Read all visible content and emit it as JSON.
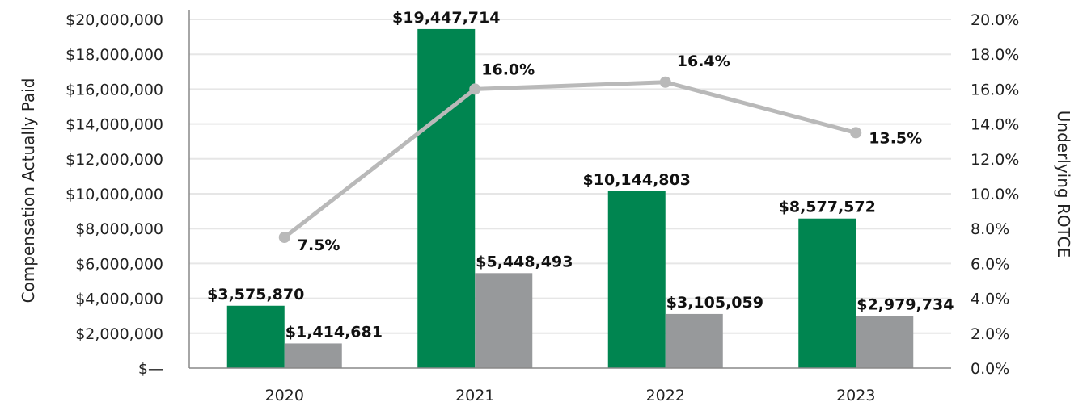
{
  "chart_data": {
    "type": "bar",
    "categories": [
      "2020",
      "2021",
      "2022",
      "2023"
    ],
    "series": [
      {
        "type": "bar",
        "color": "#008550",
        "values": [
          3575870,
          19447714,
          10144803,
          8577572
        ],
        "value_labels": [
          "$3,575,870",
          "$19,447,714",
          "$10,144,803",
          "$8,577,572"
        ]
      },
      {
        "type": "bar",
        "color": "#97999b",
        "values": [
          1414681,
          5448493,
          3105059,
          2979734
        ],
        "value_labels": [
          "$1,414,681",
          "$5,448,493",
          "$3,105,059",
          "$2,979,734"
        ]
      },
      {
        "type": "line",
        "axis": "right",
        "color": "#b9b9b9",
        "values": [
          7.5,
          16.0,
          16.4,
          13.5
        ],
        "value_labels": [
          "7.5%",
          "16.0%",
          "16.4%",
          "13.5%"
        ]
      }
    ],
    "ylabel": "Compensation Actually Paid",
    "ylabel_right": "Underlying ROTCE",
    "ylim": [
      0,
      20000000
    ],
    "ylim_right": [
      0,
      20
    ],
    "yticks": [
      "$—",
      "$2,000,000",
      "$4,000,000",
      "$6,000,000",
      "$8,000,000",
      "$10,000,000",
      "$12,000,000",
      "$14,000,000",
      "$16,000,000",
      "$18,000,000",
      "$20,000,000"
    ],
    "yticks_right": [
      "0.0%",
      "2.0%",
      "4.0%",
      "6.0%",
      "8.0%",
      "10.0%",
      "12.0%",
      "14.0%",
      "16.0%",
      "18.0%",
      "20.0%"
    ],
    "grid": true,
    "legend": "none"
  }
}
